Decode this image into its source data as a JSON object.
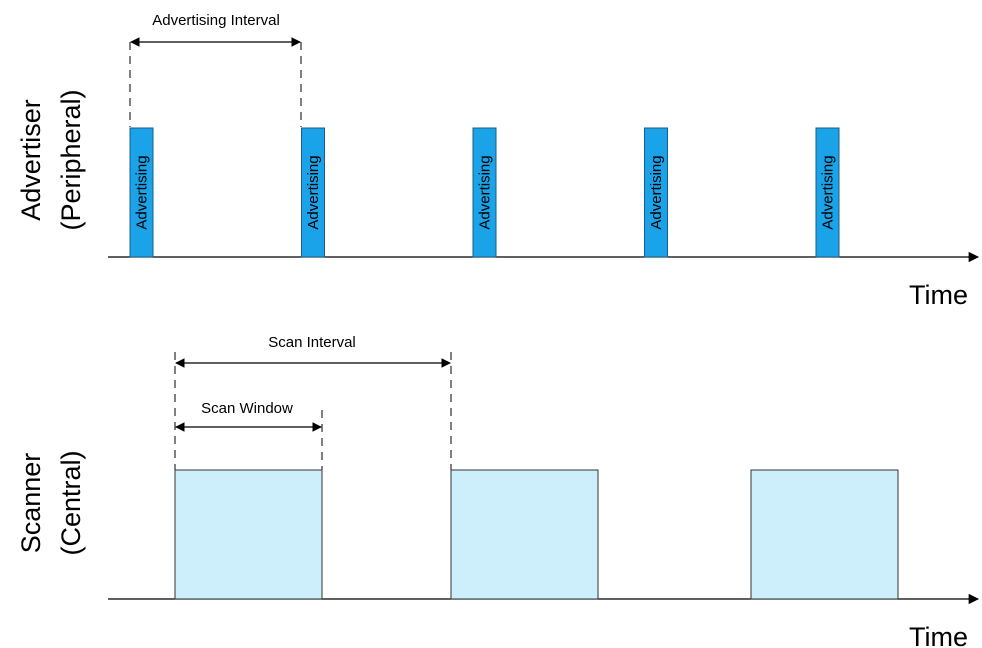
{
  "advertiser": {
    "row_label": [
      "Advertiser",
      "(Peripheral)"
    ],
    "packet_label": "Advertising",
    "packet_count": 5,
    "packet_color": "#1aa3e8",
    "interval_label": "Advertising Interval",
    "time_label": "Time"
  },
  "scanner": {
    "row_label": [
      "Scanner",
      "(Central)"
    ],
    "window_count": 3,
    "window_color": "#cdeefb",
    "interval_label": "Scan Interval",
    "window_label": "Scan Window",
    "time_label": "Time"
  }
}
